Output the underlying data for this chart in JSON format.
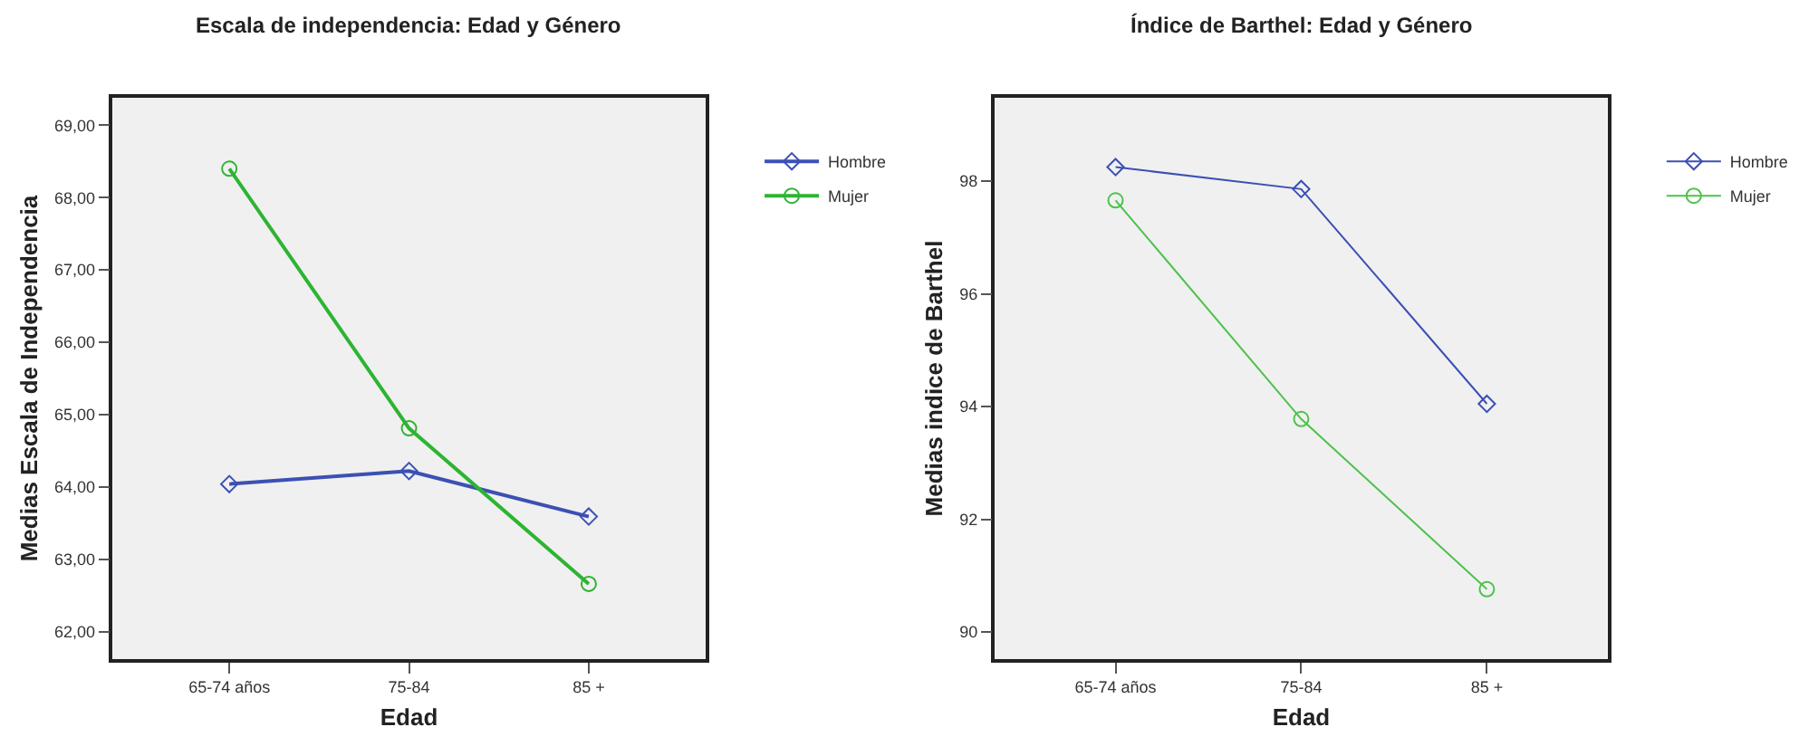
{
  "chart_data": [
    {
      "type": "line",
      "title": "Escala de independencia: Edad y Género",
      "xlabel": "Edad",
      "ylabel": "Medias Escala de Independencia",
      "categories": [
        "65-74 años",
        "75-84",
        "85 +"
      ],
      "series": [
        {
          "name": "Hombre",
          "color": "#3c50b4",
          "marker": "diamond",
          "values": [
            64.04,
            64.22,
            63.59
          ]
        },
        {
          "name": "Mujer",
          "color": "#2db432",
          "marker": "circle",
          "values": [
            68.4,
            64.81,
            62.66
          ]
        }
      ],
      "ylim": [
        61.62,
        69.38
      ],
      "yticks": [
        {
          "value": 62,
          "label": "62,00"
        },
        {
          "value": 63,
          "label": "63,00"
        },
        {
          "value": 64,
          "label": "64,00"
        },
        {
          "value": 65,
          "label": "65,00"
        },
        {
          "value": 66,
          "label": "66,00"
        },
        {
          "value": 67,
          "label": "67,00"
        },
        {
          "value": 68,
          "label": "68,00"
        },
        {
          "value": 69,
          "label": "69,00"
        }
      ],
      "grid": false,
      "legend": "top right"
    },
    {
      "type": "line",
      "title": "Índice de Barthel: Edad y Género",
      "xlabel": "Edad",
      "ylabel": "Medias indice de Barthel",
      "categories": [
        "65-74 años",
        "75-84",
        "85 +"
      ],
      "series": [
        {
          "name": "Hombre",
          "color": "#3c50b4",
          "marker": "diamond",
          "values": [
            98.25,
            97.86,
            94.05
          ]
        },
        {
          "name": "Mujer",
          "color": "#4cc24c",
          "marker": "circle",
          "values": [
            97.66,
            93.78,
            90.76
          ]
        }
      ],
      "ylim": [
        89.52,
        99.48
      ],
      "yticks": [
        90,
        92,
        94,
        96,
        98
      ],
      "grid": false,
      "legend": "top right"
    }
  ]
}
